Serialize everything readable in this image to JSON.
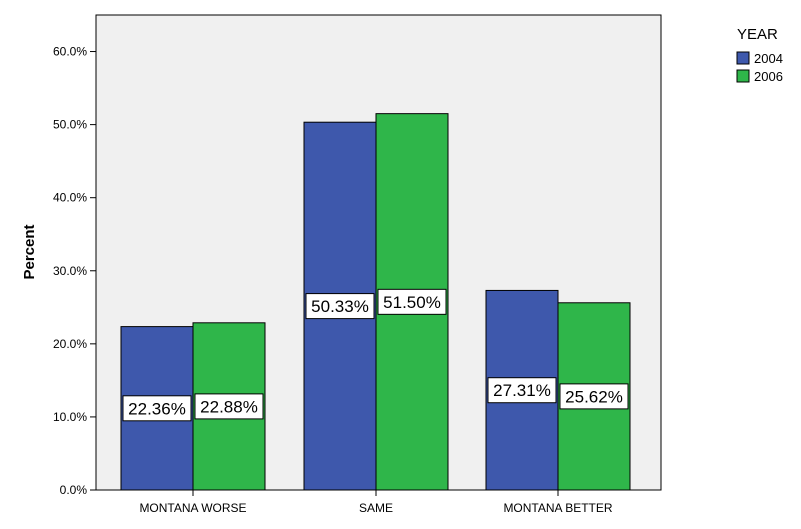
{
  "chart_data": {
    "type": "bar",
    "title": "",
    "xlabel": "",
    "ylabel": "Percent",
    "ylim": [
      0,
      65
    ],
    "yticks": [
      0,
      10,
      20,
      30,
      40,
      50,
      60
    ],
    "ytick_labels": [
      "0.0%",
      "10.0%",
      "20.0%",
      "30.0%",
      "40.0%",
      "50.0%",
      "60.0%"
    ],
    "grid": false,
    "categories": [
      "MONTANA WORSE",
      "SAME",
      "MONTANA BETTER"
    ],
    "series": [
      {
        "name": "2004",
        "color": "#3e58ac",
        "values": [
          22.36,
          50.33,
          27.31
        ],
        "labels": [
          "22.36%",
          "50.33%",
          "27.31%"
        ]
      },
      {
        "name": "2006",
        "color": "#2fb64a",
        "values": [
          22.88,
          51.5,
          25.62
        ],
        "labels": [
          "22.88%",
          "51.50%",
          "25.62%"
        ]
      }
    ],
    "legend": {
      "title": "YEAR",
      "position": "top-right"
    },
    "plot_background": "#f0f0f0"
  }
}
